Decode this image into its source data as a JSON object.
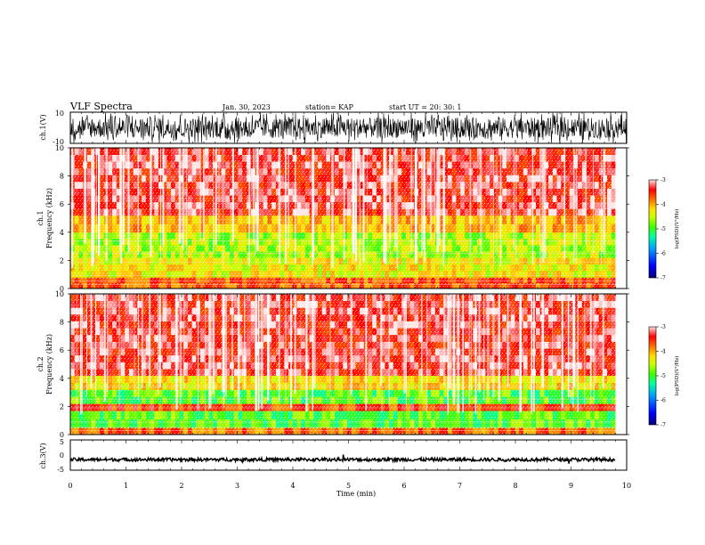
{
  "header": {
    "title": "VLF Spectra",
    "date": "Jan. 30, 2023",
    "station": "station= KAP",
    "start": "start  UT =   20: 30: 1"
  },
  "chart_data": [
    {
      "type": "line",
      "panel": "ch1-waveform",
      "ylabel": "ch.1(V)",
      "ylim": [
        -10,
        10
      ],
      "yticks": [
        "10",
        "-10"
      ],
      "xlim": [
        0,
        10
      ],
      "color": "#000000",
      "note_values": "dense noise waveform spanning approximately -10 to 10 V"
    },
    {
      "type": "heatmap",
      "panel": "ch1-spectrogram",
      "ylabel": "ch.1\nFrequency (kHz)",
      "ylim": [
        0,
        10
      ],
      "yticks": [
        "0",
        "2",
        "4",
        "6",
        "8",
        "10"
      ],
      "xlim": [
        0,
        9.8
      ],
      "colorbar": {
        "label": "log(PSD)(V²/Hz)",
        "ticks": [
          "-3",
          "-4",
          "-5",
          "-6",
          "-7"
        ],
        "range": [
          -7,
          -3
        ]
      },
      "bands": [
        {
          "f": [
            0,
            0.8
          ],
          "level": -3.7
        },
        {
          "f": [
            0.8,
            2.2
          ],
          "level": -4.4
        },
        {
          "f": [
            2.2,
            4.0
          ],
          "level": -4.7
        },
        {
          "f": [
            4.0,
            5.2
          ],
          "level": -4.1
        },
        {
          "f": [
            5.2,
            10
          ],
          "level": -3.3
        }
      ]
    },
    {
      "type": "heatmap",
      "panel": "ch2-spectrogram",
      "ylabel": "ch.2\nFrequency (kHz)",
      "ylim": [
        0,
        10
      ],
      "yticks": [
        "0",
        "2",
        "4",
        "6",
        "8",
        "10"
      ],
      "xlim": [
        0,
        9.8
      ],
      "colorbar": {
        "label": "log(PSD)(V²/Hz)",
        "ticks": [
          "-3",
          "-4",
          "-5",
          "-6",
          "-7"
        ],
        "range": [
          -7,
          -3
        ]
      },
      "bands": [
        {
          "f": [
            0,
            0.5
          ],
          "level": -3.8
        },
        {
          "f": [
            0.5,
            1.7
          ],
          "level": -5.0
        },
        {
          "f": [
            1.7,
            2.2
          ],
          "level": -3.6
        },
        {
          "f": [
            2.2,
            3.2
          ],
          "level": -5.0
        },
        {
          "f": [
            3.2,
            4.2
          ],
          "level": -4.3
        },
        {
          "f": [
            4.2,
            10
          ],
          "level": -3.3
        }
      ]
    },
    {
      "type": "line",
      "panel": "ch3-waveform",
      "ylabel": "ch.3(V)",
      "ylim": [
        -5,
        5
      ],
      "yticks": [
        "5",
        "0",
        "-5"
      ],
      "xlim": [
        0,
        10
      ],
      "level": -1.5,
      "color": "#000000"
    }
  ],
  "x_axis": {
    "label": "Time (min)",
    "ticks": [
      "0",
      "1",
      "2",
      "3",
      "4",
      "5",
      "6",
      "7",
      "8",
      "9",
      "10"
    ]
  },
  "colors": {
    "scale": [
      "#00007a",
      "#0000ff",
      "#00a0ff",
      "#00ffa0",
      "#40ff00",
      "#c8ff00",
      "#ffe000",
      "#ff7000",
      "#ff0000",
      "#ffffff"
    ]
  }
}
